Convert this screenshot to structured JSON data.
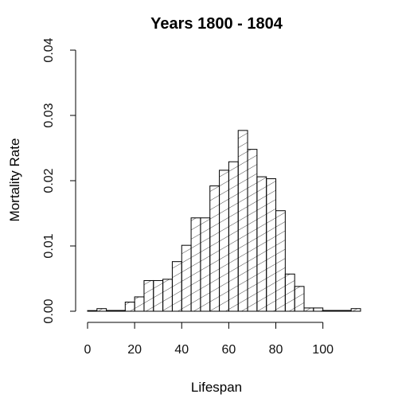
{
  "chart_data": {
    "type": "bar",
    "title": "Years  1800 - 1804",
    "xlabel": "Lifespan",
    "ylabel": "Mortality Rate",
    "xlim": [
      0,
      115
    ],
    "ylim": [
      0,
      0.04
    ],
    "x_ticks": [
      {
        "value": 0,
        "label": "0"
      },
      {
        "value": 20,
        "label": "20"
      },
      {
        "value": 40,
        "label": "40"
      },
      {
        "value": 60,
        "label": "60"
      },
      {
        "value": 80,
        "label": "80"
      },
      {
        "value": 100,
        "label": "100"
      }
    ],
    "y_ticks": [
      {
        "value": 0,
        "label": "0.00"
      },
      {
        "value": 0.01,
        "label": "0.01"
      },
      {
        "value": 0.02,
        "label": "0.02"
      },
      {
        "value": 0.03,
        "label": "0.03"
      },
      {
        "value": 0.04,
        "label": "0.04"
      }
    ],
    "bins": [
      {
        "x0": 0,
        "x1": 4,
        "value": 0.0001
      },
      {
        "x0": 4,
        "x1": 8,
        "value": 0.0004
      },
      {
        "x0": 8,
        "x1": 12,
        "value": 0.0
      },
      {
        "x0": 12,
        "x1": 16,
        "value": 0.0
      },
      {
        "x0": 16,
        "x1": 20,
        "value": 0.0014
      },
      {
        "x0": 20,
        "x1": 24,
        "value": 0.0022
      },
      {
        "x0": 24,
        "x1": 28,
        "value": 0.0047
      },
      {
        "x0": 28,
        "x1": 32,
        "value": 0.0047
      },
      {
        "x0": 32,
        "x1": 36,
        "value": 0.0049
      },
      {
        "x0": 36,
        "x1": 40,
        "value": 0.0076
      },
      {
        "x0": 40,
        "x1": 44,
        "value": 0.0101
      },
      {
        "x0": 44,
        "x1": 48,
        "value": 0.0143
      },
      {
        "x0": 48,
        "x1": 52,
        "value": 0.0143
      },
      {
        "x0": 52,
        "x1": 56,
        "value": 0.0192
      },
      {
        "x0": 56,
        "x1": 60,
        "value": 0.0216
      },
      {
        "x0": 60,
        "x1": 64,
        "value": 0.0229
      },
      {
        "x0": 64,
        "x1": 68,
        "value": 0.0277
      },
      {
        "x0": 68,
        "x1": 72,
        "value": 0.0248
      },
      {
        "x0": 72,
        "x1": 76,
        "value": 0.0206
      },
      {
        "x0": 76,
        "x1": 80,
        "value": 0.0203
      },
      {
        "x0": 80,
        "x1": 84,
        "value": 0.0154
      },
      {
        "x0": 84,
        "x1": 88,
        "value": 0.0057
      },
      {
        "x0": 88,
        "x1": 92,
        "value": 0.0038
      },
      {
        "x0": 92,
        "x1": 96,
        "value": 0.0005
      },
      {
        "x0": 96,
        "x1": 100,
        "value": 0.0005
      },
      {
        "x0": 100,
        "x1": 104,
        "value": 0.0
      },
      {
        "x0": 104,
        "x1": 108,
        "value": 0.0
      },
      {
        "x0": 108,
        "x1": 112,
        "value": 0.0
      },
      {
        "x0": 112,
        "x1": 116,
        "value": 0.0004
      }
    ],
    "grid": false,
    "legend": "none",
    "colors": {
      "background": "#ffffff",
      "bar_fill": "#ffffff",
      "hatch": "#444444",
      "stroke": "#000000",
      "text": "#111111"
    }
  }
}
